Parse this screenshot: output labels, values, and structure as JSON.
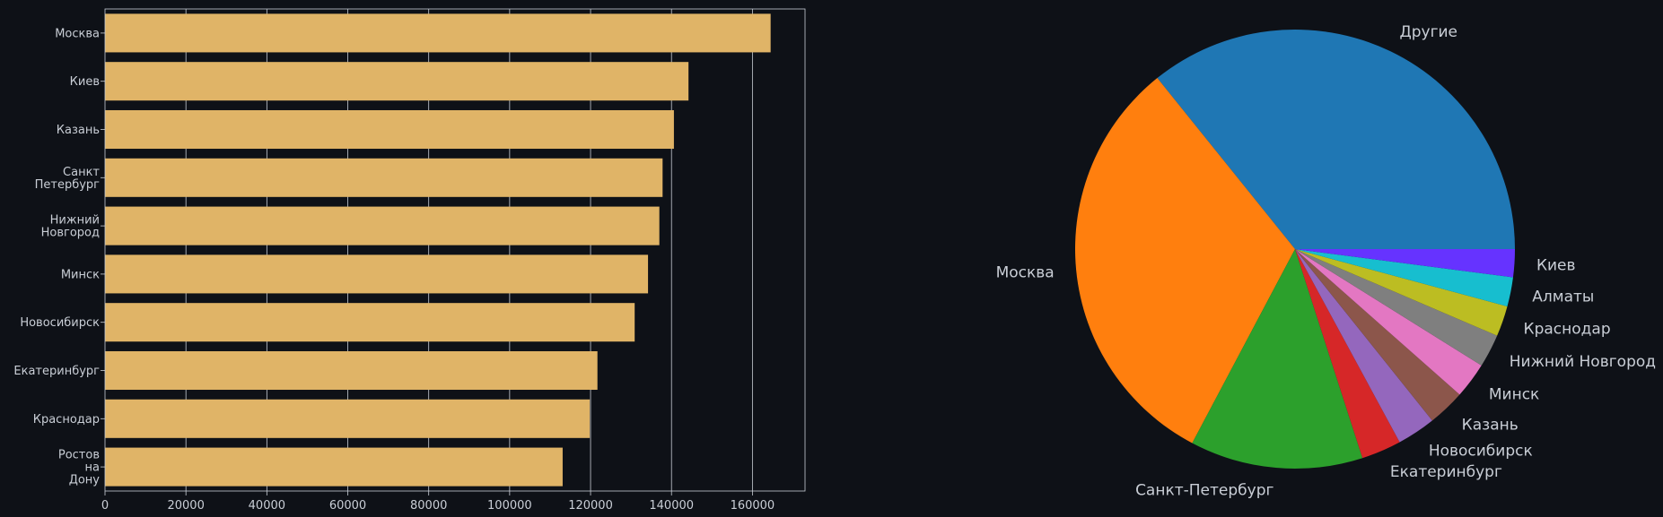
{
  "chart_data": [
    {
      "type": "bar",
      "orientation": "horizontal",
      "title": "",
      "xlabel": "",
      "ylabel": "",
      "xlim": [
        0,
        173000
      ],
      "grid": "x",
      "bar_color": "#e0b467",
      "categories": [
        [
          "Москва"
        ],
        [
          "Киев"
        ],
        [
          "Казань"
        ],
        [
          "Санкт",
          "Петербург"
        ],
        [
          "Нижний",
          "Новгород"
        ],
        [
          "Минск"
        ],
        [
          "Новосибирск"
        ],
        [
          "Екатеринбург"
        ],
        [
          "Краснодар"
        ],
        [
          "Ростов",
          "на",
          "Дону"
        ]
      ],
      "values": [
        164500,
        144200,
        140600,
        137800,
        137000,
        134200,
        130900,
        121700,
        119800,
        113100
      ],
      "xticks": [
        0,
        20000,
        40000,
        60000,
        80000,
        100000,
        120000,
        140000,
        160000
      ],
      "xtick_labels": [
        "0",
        "20000",
        "40000",
        "60000",
        "80000",
        "100000",
        "120000",
        "140000",
        "160000"
      ]
    },
    {
      "type": "pie",
      "start_angle_deg": 0,
      "direction": "counterclockwise",
      "slices": [
        {
          "label": "Другие",
          "value": 36.6,
          "color": "#1f77b4"
        },
        {
          "label": "Москва",
          "value": 32.2,
          "color": "#ff7f0e"
        },
        {
          "label": "Санкт-Петербург",
          "value": 13.0,
          "color": "#2ca02c"
        },
        {
          "label": "Екатеринбург",
          "value": 3.0,
          "color": "#d62728"
        },
        {
          "label": "Новосибирск",
          "value": 2.9,
          "color": "#9467bd"
        },
        {
          "label": "Казань",
          "value": 2.8,
          "color": "#8c564b"
        },
        {
          "label": "Минск",
          "value": 2.7,
          "color": "#e377c2"
        },
        {
          "label": "Нижний Новгород",
          "value": 2.5,
          "color": "#7f7f7f"
        },
        {
          "label": "Краснодар",
          "value": 2.3,
          "color": "#bcbd22"
        },
        {
          "label": "Алматы",
          "value": 2.2,
          "color": "#17becf"
        },
        {
          "label": "Киев",
          "value": 2.1,
          "color": "#6633ff"
        }
      ]
    }
  ],
  "colors": {
    "background": "#0e1117",
    "axis": "#c9ced6",
    "grid": "#c9ced6",
    "text": "#c9ced6"
  }
}
